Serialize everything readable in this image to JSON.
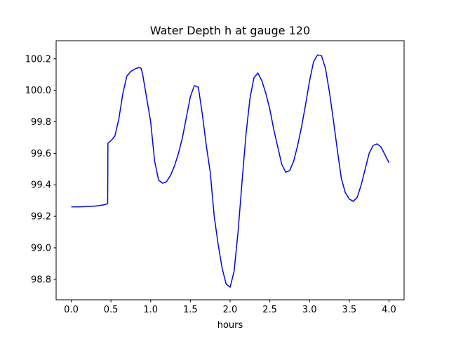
{
  "chart_data": {
    "type": "line",
    "title": "Water Depth h at gauge 120",
    "xlabel": "hours",
    "ylabel": "",
    "xlim": [
      -0.19,
      4.19
    ],
    "ylim": [
      98.67,
      100.315
    ],
    "xticks": [
      0.0,
      0.5,
      1.0,
      1.5,
      2.0,
      2.5,
      3.0,
      3.5,
      4.0
    ],
    "xtick_labels": [
      "0.0",
      "0.5",
      "1.0",
      "1.5",
      "2.0",
      "2.5",
      "3.0",
      "3.5",
      "4.0"
    ],
    "yticks": [
      98.8,
      99.0,
      99.2,
      99.4,
      99.6,
      99.8,
      100.0,
      100.2
    ],
    "ytick_labels": [
      "98.8",
      "99.0",
      "99.2",
      "99.4",
      "99.6",
      "99.8",
      "100.0",
      "100.2"
    ],
    "grid": false,
    "series": [
      {
        "name": "",
        "color": "#0000ff",
        "x": [
          0.0,
          0.1,
          0.2,
          0.3,
          0.35,
          0.4,
          0.44,
          0.459,
          0.462,
          0.5,
          0.55,
          0.6,
          0.65,
          0.7,
          0.75,
          0.8,
          0.85,
          0.88,
          0.9,
          0.95,
          1.0,
          1.05,
          1.1,
          1.15,
          1.2,
          1.25,
          1.3,
          1.35,
          1.4,
          1.45,
          1.5,
          1.55,
          1.6,
          1.65,
          1.7,
          1.75,
          1.8,
          1.85,
          1.9,
          1.95,
          2.0,
          2.05,
          2.1,
          2.15,
          2.2,
          2.25,
          2.3,
          2.35,
          2.4,
          2.45,
          2.5,
          2.55,
          2.6,
          2.65,
          2.7,
          2.75,
          2.8,
          2.85,
          2.9,
          2.95,
          3.0,
          3.05,
          3.1,
          3.15,
          3.2,
          3.25,
          3.3,
          3.35,
          3.4,
          3.45,
          3.5,
          3.55,
          3.6,
          3.65,
          3.7,
          3.75,
          3.8,
          3.85,
          3.9,
          3.95,
          4.0
        ],
        "y": [
          99.26,
          99.26,
          99.262,
          99.265,
          99.268,
          99.272,
          99.277,
          99.28,
          99.665,
          99.68,
          99.71,
          99.82,
          99.98,
          100.09,
          100.12,
          100.135,
          100.145,
          100.14,
          100.1,
          99.95,
          99.8,
          99.55,
          99.43,
          99.41,
          99.42,
          99.46,
          99.52,
          99.6,
          99.7,
          99.83,
          99.96,
          100.03,
          100.02,
          99.85,
          99.65,
          99.48,
          99.2,
          99.02,
          98.87,
          98.77,
          98.75,
          98.85,
          99.1,
          99.42,
          99.72,
          99.95,
          100.08,
          100.11,
          100.06,
          99.98,
          99.88,
          99.75,
          99.64,
          99.53,
          99.48,
          99.49,
          99.55,
          99.65,
          99.77,
          99.91,
          100.06,
          100.18,
          100.225,
          100.22,
          100.14,
          99.99,
          99.81,
          99.62,
          99.44,
          99.35,
          99.31,
          99.295,
          99.32,
          99.4,
          99.5,
          99.6,
          99.65,
          99.66,
          99.64,
          99.59,
          99.54
        ]
      }
    ]
  }
}
